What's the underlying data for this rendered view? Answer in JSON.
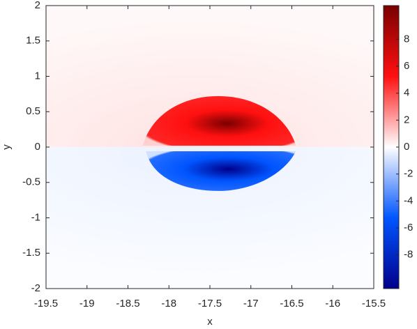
{
  "chart_data": {
    "type": "heatmap",
    "x_label": "x",
    "y_label": "y",
    "xlim": [
      -19.5,
      -15.5
    ],
    "xticks": [
      -19.5,
      -19,
      -18.5,
      -18,
      -17.5,
      -17,
      -16.5,
      -16,
      -15.5
    ],
    "ylim": [
      -2,
      2
    ],
    "yticks": [
      -2,
      -1.5,
      -1,
      -0.5,
      0,
      0.5,
      1,
      1.5,
      2
    ],
    "clim": [
      -10.5,
      10.5
    ],
    "cticks": [
      -8,
      -6,
      -4,
      -2,
      0,
      2,
      4,
      6,
      8
    ],
    "colormap": [
      "#00008b",
      "#0055ff",
      "#ffffff",
      "#ff1010",
      "#7a0000"
    ]
  }
}
